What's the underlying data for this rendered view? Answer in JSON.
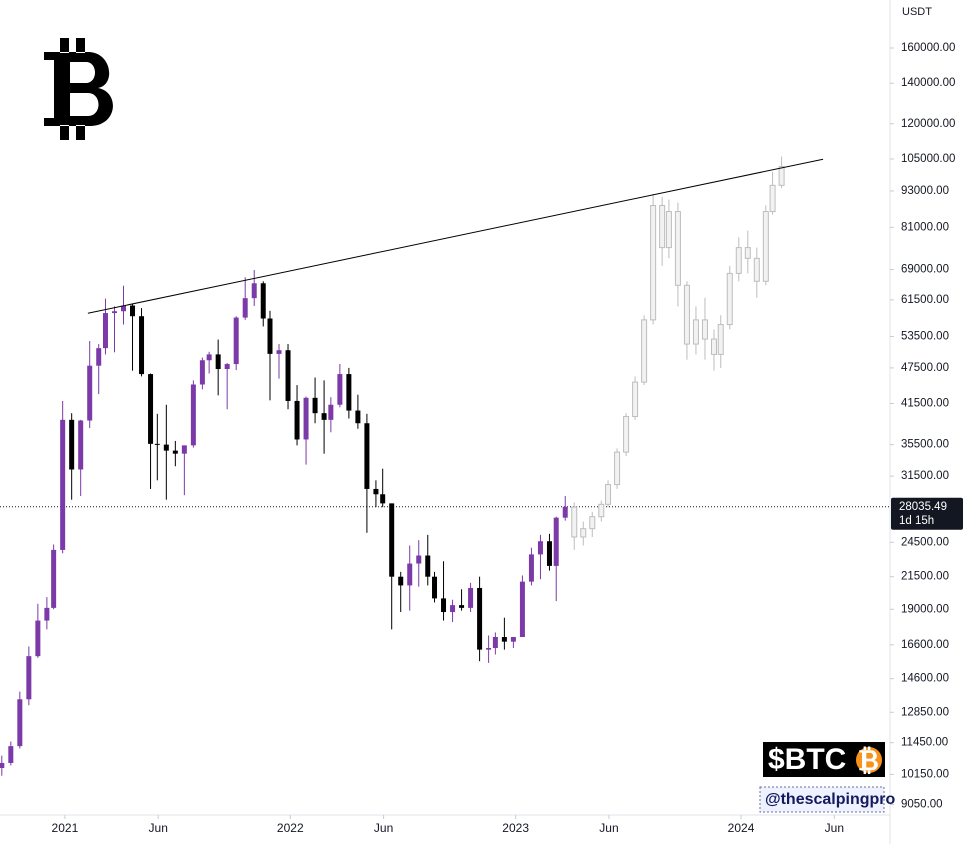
{
  "chart_data": {
    "type": "candlestick",
    "unit": "USDT",
    "log_scale": true,
    "ylim": [
      8700,
      192000
    ],
    "yticks": [
      {
        "value": 9050,
        "label": "9050.00"
      },
      {
        "value": 10150,
        "label": "10150.00"
      },
      {
        "value": 11450,
        "label": "11450.00"
      },
      {
        "value": 12850,
        "label": "12850.00"
      },
      {
        "value": 14600,
        "label": "14600.00"
      },
      {
        "value": 16600,
        "label": "16600.00"
      },
      {
        "value": 19000,
        "label": "19000.00"
      },
      {
        "value": 21500,
        "label": "21500.00"
      },
      {
        "value": 24500,
        "label": "24500.00"
      },
      {
        "value": 31500,
        "label": "31500.00"
      },
      {
        "value": 35500,
        "label": "35500.00"
      },
      {
        "value": 41500,
        "label": "41500.00"
      },
      {
        "value": 47500,
        "label": "47500.00"
      },
      {
        "value": 53500,
        "label": "53500.00"
      },
      {
        "value": 61500,
        "label": "61500.00"
      },
      {
        "value": 69000,
        "label": "69000.00"
      },
      {
        "value": 81000,
        "label": "81000.00"
      },
      {
        "value": 93000,
        "label": "93000.00"
      },
      {
        "value": 105000,
        "label": "105000.00"
      },
      {
        "value": 120000,
        "label": "120000.00"
      },
      {
        "value": 140000,
        "label": "140000.00"
      },
      {
        "value": 160000,
        "label": "160000.00"
      }
    ],
    "xlim": [
      2020.712,
      2024.661
    ],
    "xticks": [
      2021,
      {
        "value": 2021.414,
        "label": "Jun"
      },
      2022,
      {
        "value": 2022.414,
        "label": "Jun"
      },
      2023,
      {
        "value": 2023.414,
        "label": "Jun"
      },
      2024,
      {
        "value": 2024.414,
        "label": "Jun"
      }
    ],
    "up_color": "#7b3aa8",
    "down_color": "#000000",
    "projection_color": "#bdbdbd",
    "candles": {
      "x": [
        2020.72,
        2020.76,
        2020.8,
        2020.84,
        2020.88,
        2020.92,
        2020.95,
        2020.99,
        2021.03,
        2021.07,
        2021.11,
        2021.15,
        2021.18,
        2021.22,
        2021.26,
        2021.3,
        2021.34,
        2021.38,
        2021.41,
        2021.45,
        2021.49,
        2021.53,
        2021.57,
        2021.61,
        2021.64,
        2021.68,
        2021.72,
        2021.76,
        2021.8,
        2021.84,
        2021.88,
        2021.91,
        2021.95,
        2021.99,
        2022.03,
        2022.07,
        2022.11,
        2022.15,
        2022.18,
        2022.22,
        2022.26,
        2022.3,
        2022.34,
        2022.38,
        2022.41,
        2022.45,
        2022.49,
        2022.53,
        2022.57,
        2022.61,
        2022.64,
        2022.68,
        2022.72,
        2022.76,
        2022.8,
        2022.84,
        2022.88,
        2022.91,
        2022.95,
        2022.99,
        2023.03,
        2023.07,
        2023.11,
        2023.15,
        2023.18,
        2023.22
      ],
      "open": [
        10400,
        10600,
        11300,
        13500,
        15900,
        18200,
        19100,
        23800,
        39000,
        32300,
        38900,
        47900,
        51200,
        58500,
        58900,
        60200,
        57800,
        46400,
        35600,
        35500,
        34700,
        34300,
        35400,
        44600,
        48900,
        50000,
        47300,
        48200,
        57500,
        61900,
        65500,
        57300,
        50100,
        50800,
        41900,
        36200,
        42400,
        40000,
        39000,
        41300,
        46400,
        40400,
        38500,
        30000,
        29400,
        28400,
        21500,
        20800,
        22600,
        23300,
        21500,
        19800,
        18800,
        19300,
        19100,
        20600,
        16300,
        16400,
        17100,
        16800,
        17100,
        21100,
        23400,
        24600,
        22400,
        26900
      ],
      "high": [
        10900,
        11500,
        13900,
        16500,
        19400,
        19900,
        24300,
        41900,
        40000,
        39000,
        52600,
        52000,
        61800,
        60000,
        64900,
        60500,
        59600,
        46500,
        39900,
        41300,
        36000,
        34700,
        45300,
        49400,
        50500,
        52900,
        48400,
        57800,
        67000,
        68900,
        66000,
        59000,
        52000,
        52000,
        44500,
        42600,
        45800,
        45300,
        42500,
        48200,
        47500,
        42900,
        39900,
        31000,
        32400,
        28400,
        21900,
        24200,
        24700,
        25200,
        21900,
        22800,
        19700,
        20500,
        21000,
        21500,
        17200,
        17400,
        18400,
        17100,
        21600,
        24000,
        25200,
        25300,
        27000,
        29200
      ],
      "low": [
        10100,
        10500,
        11200,
        13200,
        15800,
        17600,
        19000,
        23500,
        28800,
        29200,
        37800,
        43000,
        50000,
        50400,
        56000,
        47000,
        46000,
        30000,
        31000,
        28800,
        32700,
        29300,
        35100,
        43800,
        46500,
        42800,
        40600,
        47100,
        57000,
        60100,
        55600,
        42000,
        45600,
        40600,
        35400,
        32900,
        38500,
        34300,
        37200,
        40900,
        39200,
        37700,
        25400,
        28000,
        28000,
        17600,
        18800,
        18900,
        20700,
        20800,
        19500,
        18200,
        18100,
        18900,
        18800,
        15600,
        15500,
        16000,
        16300,
        16400,
        17100,
        20800,
        21300,
        22000,
        19600,
        26600
      ],
      "close": [
        10600,
        11300,
        13500,
        15900,
        18200,
        19100,
        23800,
        39000,
        32300,
        38900,
        47900,
        51200,
        58500,
        58900,
        60200,
        57800,
        46400,
        35600,
        35500,
        34700,
        34300,
        35400,
        44600,
        48900,
        50000,
        47300,
        48200,
        57500,
        61900,
        65500,
        57300,
        50100,
        50800,
        41900,
        36200,
        42400,
        40000,
        39000,
        41300,
        46400,
        40400,
        38500,
        30000,
        29400,
        28400,
        21500,
        20800,
        22600,
        23300,
        21500,
        19800,
        18800,
        19300,
        19100,
        20600,
        16300,
        16400,
        17100,
        16800,
        17100,
        21100,
        23400,
        24600,
        22400,
        26900,
        28035.49
      ]
    },
    "projection": {
      "x": [
        2023.26,
        2023.3,
        2023.34,
        2023.38,
        2023.41,
        2023.45,
        2023.49,
        2023.53,
        2023.57,
        2023.61,
        2023.65,
        2023.68,
        2023.72,
        2023.76,
        2023.8,
        2023.84,
        2023.88,
        2023.91,
        2023.95,
        2023.99,
        2024.03,
        2024.07,
        2024.11,
        2024.14,
        2024.18
      ],
      "open": [
        28000,
        25000,
        25800,
        27000,
        28300,
        30500,
        34500,
        39500,
        45000,
        57000,
        88000,
        75000,
        86000,
        65000,
        52000,
        57000,
        53000,
        50000,
        56000,
        68000,
        75000,
        72000,
        66000,
        86000,
        95000
      ],
      "high": [
        28500,
        26500,
        27500,
        28700,
        31000,
        35000,
        40000,
        46000,
        58000,
        92000,
        91000,
        90000,
        89000,
        66000,
        60000,
        62000,
        55000,
        58000,
        70000,
        78000,
        80000,
        75000,
        88000,
        100000,
        106000
      ],
      "low": [
        23800,
        24200,
        25000,
        26500,
        28000,
        30000,
        34000,
        39000,
        44500,
        56000,
        70000,
        72000,
        60000,
        49000,
        50000,
        49000,
        47000,
        47500,
        55000,
        66000,
        68000,
        62000,
        65000,
        85000,
        94000
      ],
      "close": [
        25000,
        25800,
        27000,
        28300,
        30500,
        34500,
        39500,
        45000,
        57000,
        88000,
        75000,
        86000,
        65000,
        52000,
        57000,
        53000,
        50000,
        56000,
        68000,
        75000,
        72000,
        66000,
        86000,
        95000,
        102000
      ]
    },
    "trendline": {
      "x": [
        2021.102,
        2024.364
      ],
      "values": [
        58450,
        104900
      ]
    },
    "last_price": 28035.49,
    "countdown": "1d 15h",
    "badge": {
      "ticker": "$BTC",
      "handle": "@thescalpingpro"
    }
  }
}
